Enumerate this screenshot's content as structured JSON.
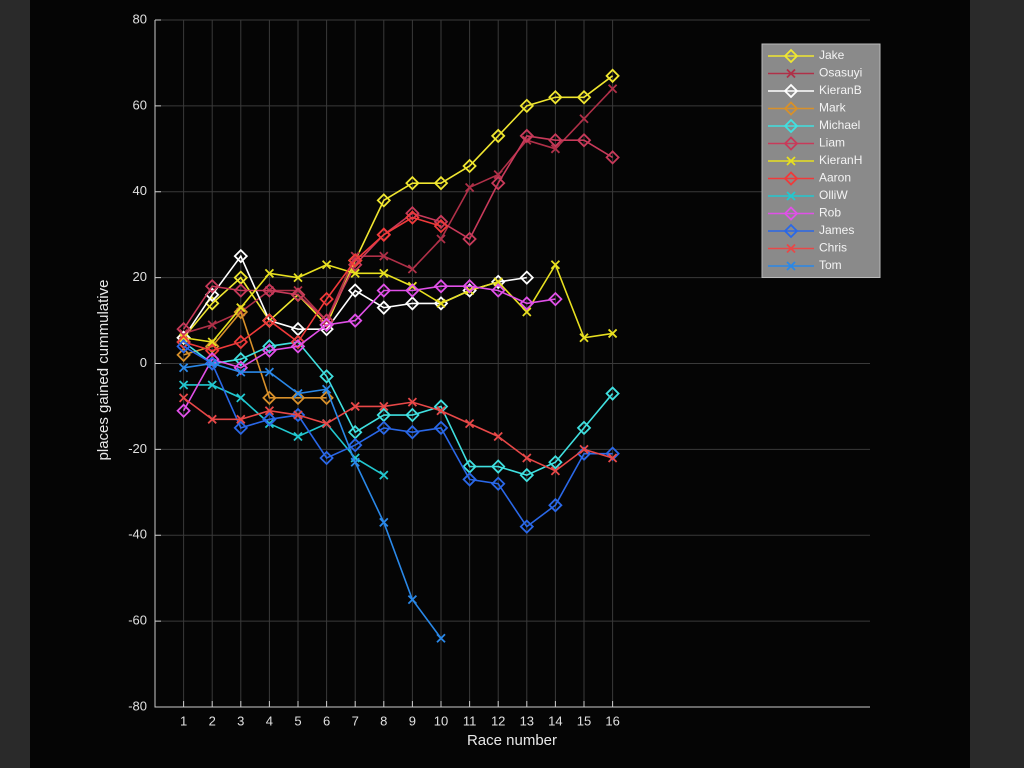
{
  "chart_data": {
    "type": "line",
    "x_label": "Race number",
    "y_label": "places gained cummulative",
    "x": [
      1,
      2,
      3,
      4,
      5,
      6,
      7,
      8,
      9,
      10,
      11,
      12,
      13,
      14,
      15,
      16
    ],
    "xlim": [
      0,
      25
    ],
    "xticks": [
      1,
      2,
      3,
      4,
      5,
      6,
      7,
      8,
      9,
      10,
      11,
      12,
      13,
      14,
      15,
      16
    ],
    "ylim": [
      -80,
      80
    ],
    "yticks": [
      -80,
      -60,
      -40,
      -20,
      0,
      20,
      40,
      60,
      80
    ],
    "grid": true,
    "legend": "upper right",
    "series": [
      {
        "name": "Jake",
        "color": "#f0e630",
        "marker": "diamond",
        "values": [
          6,
          14,
          20,
          10,
          16,
          9,
          24,
          38,
          42,
          42,
          46,
          53,
          60,
          62,
          62,
          67
        ]
      },
      {
        "name": "Osasuyi",
        "color": "#b03048",
        "marker": "x",
        "values": [
          7,
          9,
          12,
          17,
          17,
          10,
          25,
          25,
          22,
          29,
          41,
          44,
          52,
          50,
          57,
          64
        ]
      },
      {
        "name": "KieranB",
        "color": "#ffffff",
        "marker": "diamond",
        "values": [
          6,
          16,
          25,
          10,
          8,
          8,
          17,
          13,
          14,
          14,
          17,
          19,
          20,
          null,
          null,
          null
        ]
      },
      {
        "name": "Mark",
        "color": "#d8902a",
        "marker": "diamond",
        "values": [
          2,
          4,
          12,
          -8,
          -8,
          -8,
          null,
          null,
          null,
          null,
          null,
          null,
          null,
          null,
          null,
          null
        ]
      },
      {
        "name": "Michael",
        "color": "#40e0e0",
        "marker": "diamond",
        "values": [
          5,
          0,
          1,
          4,
          5,
          -3,
          -16,
          -12,
          -12,
          -10,
          -24,
          -24,
          -26,
          -23,
          -15,
          -7
        ]
      },
      {
        "name": "Liam",
        "color": "#c83a5a",
        "marker": "diamond",
        "values": [
          8,
          18,
          17,
          17,
          16,
          10,
          23,
          30,
          35,
          33,
          29,
          42,
          53,
          52,
          52,
          48
        ]
      },
      {
        "name": "KieranH",
        "color": "#e8e020",
        "marker": "x",
        "values": [
          6,
          5,
          13,
          21,
          20,
          23,
          21,
          21,
          18,
          14,
          17,
          19,
          12,
          23,
          6,
          7
        ]
      },
      {
        "name": "Aaron",
        "color": "#f03a3a",
        "marker": "diamond",
        "values": [
          5,
          3,
          5,
          10,
          5,
          15,
          24,
          30,
          34,
          32,
          null,
          null,
          null,
          null,
          null,
          null
        ]
      },
      {
        "name": "OlliW",
        "color": "#22c8d0",
        "marker": "x",
        "values": [
          -5,
          -5,
          -8,
          -14,
          -17,
          -14,
          -22,
          -26,
          null,
          null,
          null,
          null,
          null,
          null,
          null,
          null
        ]
      },
      {
        "name": "Rob",
        "color": "#e050e8",
        "marker": "diamond",
        "values": [
          -11,
          1,
          -1,
          3,
          4,
          9,
          10,
          17,
          17,
          18,
          18,
          17,
          14,
          15,
          null,
          null
        ]
      },
      {
        "name": "James",
        "color": "#2a68e8",
        "marker": "diamond",
        "values": [
          4,
          0,
          -15,
          -13,
          -12,
          -22,
          -19,
          -15,
          -16,
          -15,
          -27,
          -28,
          -38,
          -33,
          -21,
          -21
        ]
      },
      {
        "name": "Chris",
        "color": "#e84848",
        "marker": "x",
        "values": [
          -8,
          -13,
          -13,
          -11,
          -12,
          -14,
          -10,
          -10,
          -9,
          -11,
          -14,
          -17,
          -22,
          -25,
          -20,
          -22
        ]
      },
      {
        "name": "Tom",
        "color": "#2a88e8",
        "marker": "x",
        "values": [
          -1,
          0,
          -2,
          -2,
          -7,
          -6,
          -23,
          -37,
          -55,
          -64,
          null,
          null,
          null,
          null,
          null,
          null
        ]
      }
    ]
  }
}
